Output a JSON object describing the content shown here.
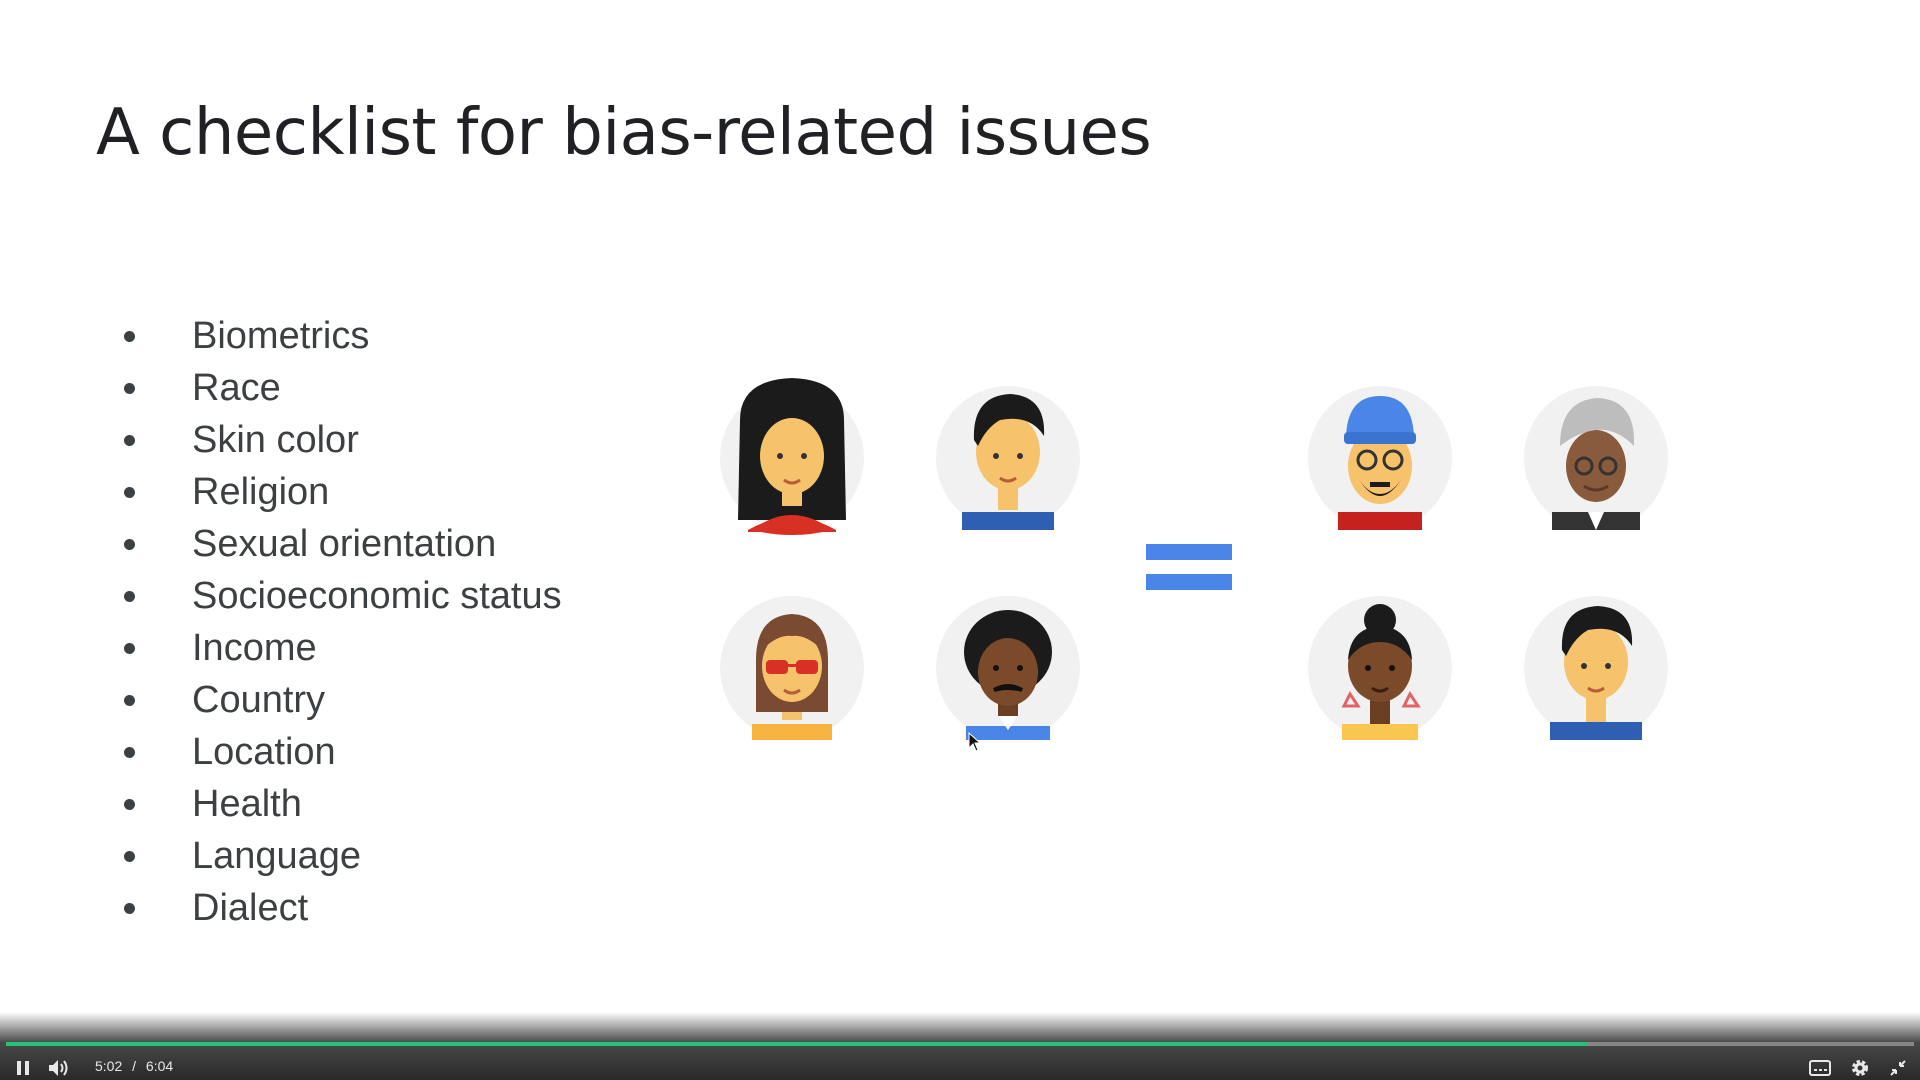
{
  "slide": {
    "title": "A checklist for bias-related issues",
    "bullets": [
      "Biometrics",
      "Race",
      "Skin color",
      "Religion",
      "Sexual orientation",
      "Socioeconomic status",
      "Income",
      "Country",
      "Location",
      "Health",
      "Language",
      "Dialect"
    ]
  },
  "player": {
    "current_time": "5:02",
    "separator": "/",
    "duration": "6:04",
    "progress_fraction": 0.829,
    "icons": [
      "pause-icon",
      "volume-icon",
      "captions-icon",
      "settings-icon",
      "exit-fullscreen-icon"
    ],
    "accent_color": "#27c27a"
  }
}
